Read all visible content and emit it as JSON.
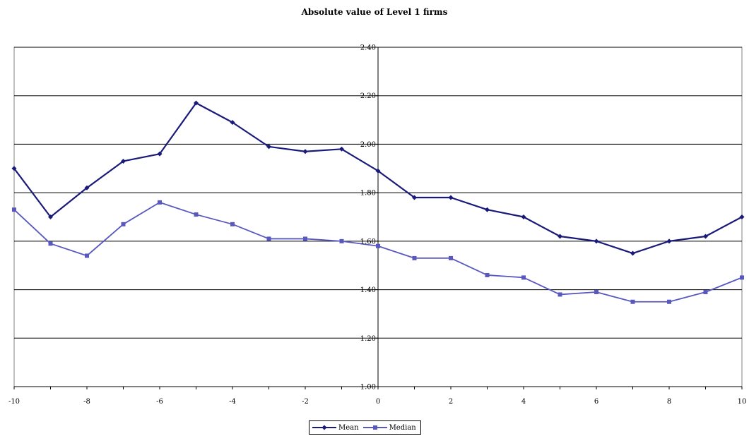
{
  "chart_data": {
    "type": "line",
    "title": "Absolute value of Level 1 firms",
    "xlabel": "",
    "ylabel": "",
    "x": [
      -10,
      -9,
      -8,
      -7,
      -6,
      -5,
      -4,
      -3,
      -2,
      -1,
      0,
      1,
      2,
      3,
      4,
      5,
      6,
      7,
      8,
      9,
      10
    ],
    "xlim": [
      -10,
      10
    ],
    "ylim": [
      1.0,
      2.4
    ],
    "x_ticks": [
      -10,
      -8,
      -6,
      -4,
      -2,
      0,
      2,
      4,
      6,
      8,
      10
    ],
    "y_ticks": [
      "1.00",
      "1.20",
      "1.40",
      "1.60",
      "1.80",
      "2.00",
      "2.20",
      "2.40"
    ],
    "grid": "horizontal",
    "legend": "bottom-center",
    "series": [
      {
        "name": "Mean",
        "color": "#1a1a7a",
        "marker": "diamond",
        "values": [
          1.9,
          1.7,
          1.82,
          1.93,
          1.96,
          2.17,
          2.09,
          1.99,
          1.97,
          1.98,
          1.89,
          1.78,
          1.78,
          1.73,
          1.7,
          1.62,
          1.6,
          1.55,
          1.6,
          1.62,
          1.7
        ]
      },
      {
        "name": "Median",
        "color": "#5858c0",
        "marker": "square",
        "values": [
          1.73,
          1.59,
          1.54,
          1.67,
          1.76,
          1.71,
          1.67,
          1.61,
          1.61,
          1.6,
          1.58,
          1.53,
          1.53,
          1.46,
          1.45,
          1.38,
          1.39,
          1.35,
          1.35,
          1.39,
          1.45
        ]
      }
    ]
  }
}
